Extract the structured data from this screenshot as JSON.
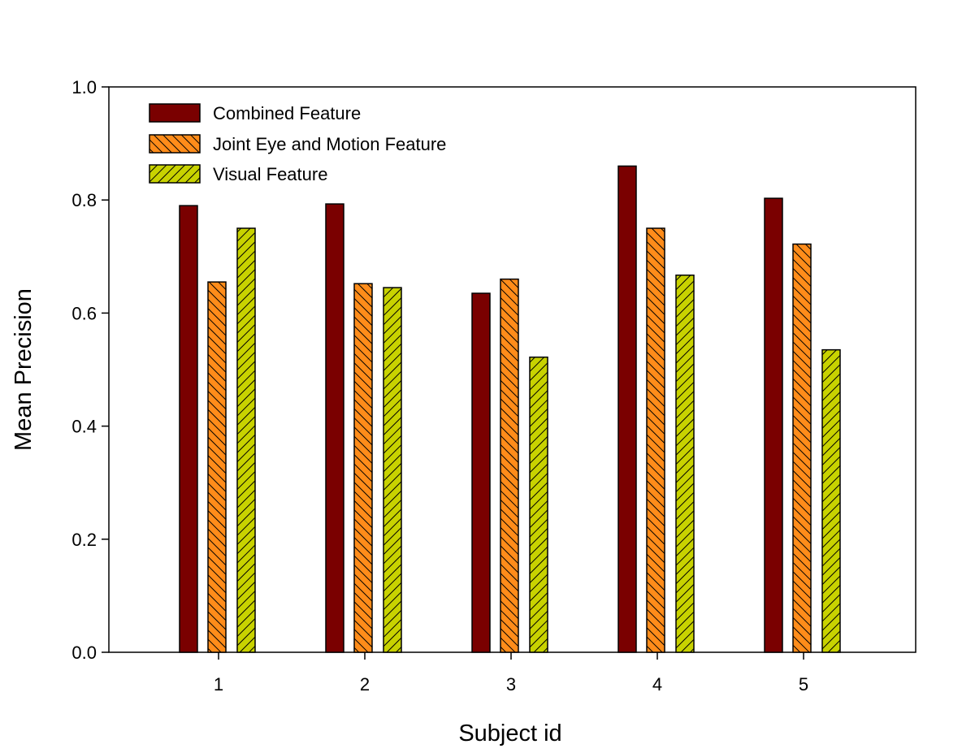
{
  "chart_data": {
    "type": "bar",
    "xlabel": "Subject id",
    "ylabel": "Mean Precision",
    "categories": [
      "1",
      "2",
      "3",
      "4",
      "5"
    ],
    "ylim": [
      0,
      1.0
    ],
    "yticks": [
      "0.0",
      "0.2",
      "0.4",
      "0.6",
      "0.8",
      "1.0"
    ],
    "grid": false,
    "legend_position": "top-left",
    "series": [
      {
        "name": "Combined Feature",
        "color": "#7a0000",
        "pattern": "solid",
        "values": [
          0.79,
          0.793,
          0.635,
          0.86,
          0.803
        ]
      },
      {
        "name": "Joint Eye and Motion Feature",
        "color": "#ff8c1a",
        "pattern": "hatch-forward",
        "values": [
          0.655,
          0.652,
          0.66,
          0.75,
          0.722
        ]
      },
      {
        "name": "Visual Feature",
        "color": "#c8d200",
        "pattern": "hatch-backward",
        "values": [
          0.75,
          0.645,
          0.522,
          0.667,
          0.535
        ]
      }
    ]
  }
}
